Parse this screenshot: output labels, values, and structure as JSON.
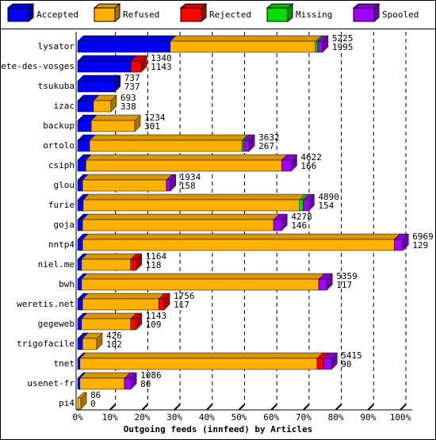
{
  "chart_data": {
    "type": "bar",
    "orientation": "horizontal",
    "stacked": true,
    "x_label": "Outgoing feeds (innfeed) by Articles",
    "legend": "top",
    "categories": [
      "lysator",
      "bete-des-vosges",
      "tsukuba",
      "izac",
      "backup",
      "ortolo",
      "csiph",
      "glou",
      "furie",
      "goja",
      "nntp4",
      "niel.me",
      "bwh",
      "weretis.net",
      "gegeweb",
      "trigofacile",
      "tnet",
      "usenet-fr",
      "pi4"
    ],
    "series": [
      {
        "name": "Accepted",
        "color": "#0000ff",
        "values": [
          28.7,
          16.5,
          11.5,
          4.9,
          4.2,
          3.7,
          2.5,
          1.5,
          1.7,
          1.5,
          1.5,
          1.2,
          1.2,
          1.5,
          1.2,
          1.5,
          0.7,
          0.7,
          0
        ]
      },
      {
        "name": "Refused",
        "color": "#ffb000",
        "values": [
          45,
          0,
          0,
          5.4,
          13.5,
          47.2,
          60.7,
          26,
          67,
          59.2,
          96.6,
          15.2,
          73.5,
          23.6,
          15.2,
          4.4,
          73.5,
          13.8,
          1
        ]
      },
      {
        "name": "Rejected",
        "color": "#ff0000",
        "values": [
          0,
          3.2,
          0,
          0,
          0,
          0,
          0,
          0,
          0,
          0,
          0,
          1.7,
          0,
          1.7,
          1.7,
          0,
          2,
          0,
          0
        ]
      },
      {
        "name": "Missing",
        "color": "#00e000",
        "values": [
          0.7,
          0,
          0,
          0,
          0,
          0.5,
          0,
          0,
          1.2,
          0,
          0,
          0,
          0,
          0,
          0,
          0,
          0,
          0,
          0
        ]
      },
      {
        "name": "Spooled",
        "color": "#a000ff",
        "values": [
          1.5,
          0,
          0,
          0,
          0,
          1.7,
          3,
          1.2,
          1.7,
          2.5,
          2.7,
          0,
          2.5,
          0,
          0,
          0,
          2.5,
          2,
          0
        ]
      }
    ],
    "label_pairs": [
      [
        5225,
        1995
      ],
      [
        1340,
        1143
      ],
      [
        737,
        737
      ],
      [
        693,
        338
      ],
      [
        1234,
        301
      ],
      [
        3632,
        267
      ],
      [
        4622,
        166
      ],
      [
        1934,
        158
      ],
      [
        4890,
        154
      ],
      [
        4278,
        146
      ],
      [
        6969,
        129
      ],
      [
        1164,
        118
      ],
      [
        5359,
        117
      ],
      [
        1756,
        117
      ],
      [
        1143,
        109
      ],
      [
        426,
        102
      ],
      [
        5415,
        90
      ],
      [
        1086,
        80
      ],
      [
        86,
        0
      ]
    ],
    "xlim": [
      0,
      100
    ],
    "xticks": [
      {
        "value": 0,
        "label": "0%"
      },
      {
        "value": 10,
        "label": "10%"
      },
      {
        "value": 20,
        "label": "20%"
      },
      {
        "value": 30,
        "label": "30%"
      },
      {
        "value": 40,
        "label": "40%"
      },
      {
        "value": 50,
        "label": "50%"
      },
      {
        "value": 60,
        "label": "60%"
      },
      {
        "value": 70,
        "label": "70%"
      },
      {
        "value": 80,
        "label": "80%"
      },
      {
        "value": 90,
        "label": "90%"
      },
      {
        "value": 100,
        "label": "100%"
      }
    ],
    "grid": true
  }
}
